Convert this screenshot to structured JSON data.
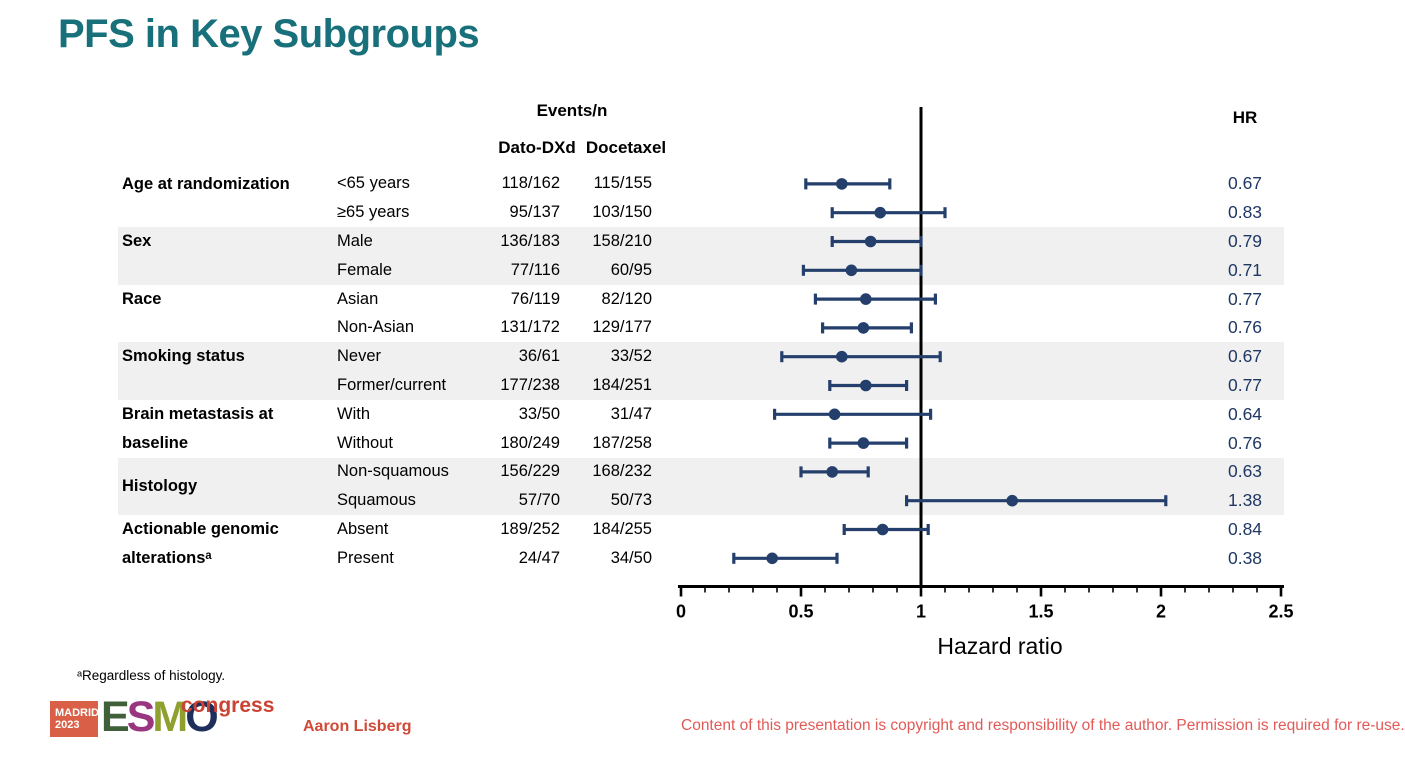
{
  "slide": {
    "title": "PFS in Key Subgroups",
    "footnote": "ᵃRegardless of histology.",
    "presenter": "Aaron Lisberg",
    "copyright": "Content of this presentation is copyright and responsibility of the author. Permission is required for re-use."
  },
  "table": {
    "events_header": "Events/n",
    "arm_headers": [
      "Dato-DXd",
      "Docetaxel"
    ],
    "hr_header": "HR"
  },
  "logo": {
    "city": "MADRID",
    "year": "2023",
    "letters": [
      {
        "char": "E",
        "color": "#40603A"
      },
      {
        "char": "S",
        "color": "#9A3680"
      },
      {
        "char": "M",
        "color": "#90A02E"
      },
      {
        "char": "O",
        "color": "#1F2F5B"
      }
    ],
    "congress": "congress"
  },
  "colors": {
    "title_teal": "#17707A",
    "navy_text": "#1F3864",
    "navy_plot": "#243F6B",
    "band_gray": "#F0F0F0",
    "axis_black": "#000000",
    "footer_red": "#D04A38",
    "copyright_red": "#E25A58",
    "congress_red": "#CC4233",
    "madrid_bg": "#D95F47"
  },
  "chart_data": {
    "type": "scatter",
    "variant": "forest-plot",
    "title": "PFS in Key Subgroups",
    "xlabel": "Hazard ratio",
    "xlim": [
      0,
      2.5
    ],
    "x_major_ticks": [
      0,
      0.5,
      1,
      1.5,
      2,
      2.5
    ],
    "x_major_tick_labels": [
      "0",
      "0.5",
      "1",
      "1.5",
      "2",
      "2.5"
    ],
    "x_minor_step": 0.1,
    "reference_line_x": 1,
    "grid": false,
    "legend": false,
    "groups": [
      {
        "label": "Age at randomization",
        "rows": [
          {
            "label": "<65 years",
            "dato": "118/162",
            "docetaxel": "115/155",
            "hr_label": "0.67",
            "hr": 0.67,
            "ci_low": 0.52,
            "ci_high": 0.87
          },
          {
            "label": "≥65 years",
            "dato": "95/137",
            "docetaxel": "103/150",
            "hr_label": "0.83",
            "hr": 0.83,
            "ci_low": 0.63,
            "ci_high": 1.1
          }
        ]
      },
      {
        "label": "Sex",
        "rows": [
          {
            "label": "Male",
            "dato": "136/183",
            "docetaxel": "158/210",
            "hr_label": "0.79",
            "hr": 0.79,
            "ci_low": 0.63,
            "ci_high": 1.0
          },
          {
            "label": "Female",
            "dato": "77/116",
            "docetaxel": "60/95",
            "hr_label": "0.71",
            "hr": 0.71,
            "ci_low": 0.51,
            "ci_high": 1.0
          }
        ]
      },
      {
        "label": "Race",
        "rows": [
          {
            "label": "Asian",
            "dato": "76/119",
            "docetaxel": "82/120",
            "hr_label": "0.77",
            "hr": 0.77,
            "ci_low": 0.56,
            "ci_high": 1.06
          },
          {
            "label": "Non-Asian",
            "dato": "131/172",
            "docetaxel": "129/177",
            "hr_label": "0.76",
            "hr": 0.76,
            "ci_low": 0.59,
            "ci_high": 0.96
          }
        ]
      },
      {
        "label": "Smoking status",
        "rows": [
          {
            "label": "Never",
            "dato": "36/61",
            "docetaxel": "33/52",
            "hr_label": "0.67",
            "hr": 0.67,
            "ci_low": 0.42,
            "ci_high": 1.08
          },
          {
            "label": "Former/current",
            "dato": "177/238",
            "docetaxel": "184/251",
            "hr_label": "0.77",
            "hr": 0.77,
            "ci_low": 0.62,
            "ci_high": 0.94
          }
        ]
      },
      {
        "label": "Brain metastasis at baseline",
        "rows": [
          {
            "label": "With",
            "dato": "33/50",
            "docetaxel": "31/47",
            "hr_label": "0.64",
            "hr": 0.64,
            "ci_low": 0.39,
            "ci_high": 1.04
          },
          {
            "label": "Without",
            "dato": "180/249",
            "docetaxel": "187/258",
            "hr_label": "0.76",
            "hr": 0.76,
            "ci_low": 0.62,
            "ci_high": 0.94
          }
        ]
      },
      {
        "label": "Histology",
        "valign": "center",
        "rows": [
          {
            "label": "Non-squamous",
            "dato": "156/229",
            "docetaxel": "168/232",
            "hr_label": "0.63",
            "hr": 0.63,
            "ci_low": 0.5,
            "ci_high": 0.78
          },
          {
            "label": "Squamous",
            "dato": "57/70",
            "docetaxel": "50/73",
            "hr_label": "1.38",
            "hr": 1.38,
            "ci_low": 0.94,
            "ci_high": 2.02
          }
        ]
      },
      {
        "label": "Actionable genomic alterationsᵃ",
        "rows": [
          {
            "label": "Absent",
            "dato": "189/252",
            "docetaxel": "184/255",
            "hr_label": "0.84",
            "hr": 0.84,
            "ci_low": 0.68,
            "ci_high": 1.03
          },
          {
            "label": "Present",
            "dato": "24/47",
            "docetaxel": "34/50",
            "hr_label": "0.38",
            "hr": 0.38,
            "ci_low": 0.22,
            "ci_high": 0.65
          }
        ]
      }
    ]
  }
}
